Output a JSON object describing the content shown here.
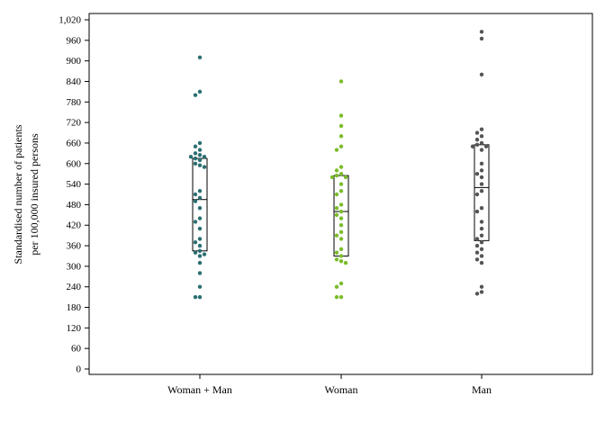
{
  "chart_data": {
    "type": "box-with-points",
    "ylabel": [
      "Standardised number of patients",
      "per 100,000 insured persons"
    ],
    "ylim": [
      0,
      1020
    ],
    "yticks": [
      0,
      60,
      120,
      180,
      240,
      300,
      360,
      420,
      480,
      540,
      600,
      660,
      720,
      780,
      840,
      900,
      960,
      1020
    ],
    "ytick_labels": [
      "0",
      "60",
      "120",
      "180",
      "240",
      "300",
      "360",
      "420",
      "480",
      "540",
      "600",
      "660",
      "720",
      "780",
      "840",
      "900",
      "960",
      "1,020"
    ],
    "categories": [
      "Woman + Man",
      "Woman",
      "Man"
    ],
    "grid": false,
    "series": [
      {
        "category": "Woman + Man",
        "color": "#2b6f72",
        "box": {
          "q1": 345,
          "median": 495,
          "q3": 615
        },
        "points": [
          910,
          810,
          800,
          660,
          650,
          640,
          630,
          625,
          620,
          620,
          615,
          610,
          600,
          595,
          590,
          520,
          510,
          500,
          490,
          470,
          440,
          430,
          410,
          380,
          370,
          360,
          345,
          340,
          335,
          330,
          310,
          280,
          240,
          210,
          210
        ]
      },
      {
        "category": "Woman",
        "color": "#7cbc2b",
        "box": {
          "q1": 330,
          "median": 460,
          "q3": 565
        },
        "points": [
          840,
          740,
          710,
          680,
          650,
          640,
          590,
          580,
          570,
          565,
          560,
          560,
          540,
          520,
          510,
          480,
          470,
          460,
          450,
          440,
          420,
          400,
          390,
          380,
          350,
          340,
          330,
          320,
          315,
          310,
          250,
          240,
          210,
          210
        ]
      },
      {
        "category": "Man",
        "color": "#555555",
        "box": {
          "q1": 375,
          "median": 530,
          "q3": 655
        },
        "points": [
          985,
          965,
          860,
          700,
          690,
          680,
          670,
          660,
          655,
          650,
          650,
          640,
          600,
          580,
          570,
          560,
          540,
          520,
          510,
          470,
          460,
          430,
          410,
          390,
          380,
          370,
          360,
          350,
          340,
          330,
          320,
          310,
          240,
          225,
          220
        ]
      }
    ]
  }
}
